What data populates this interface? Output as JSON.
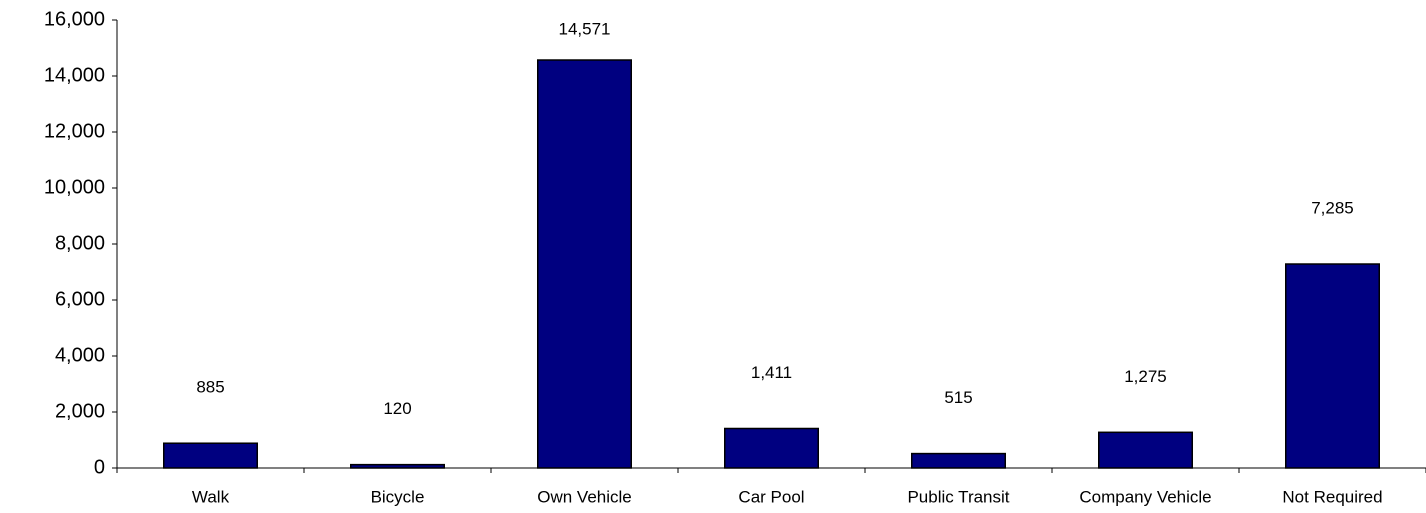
{
  "chart_data": {
    "type": "bar",
    "categories": [
      "Walk",
      "Bicycle",
      "Own Vehicle",
      "Car Pool",
      "Public Transit",
      "Company Vehicle",
      "Not Required"
    ],
    "values": [
      885,
      120,
      14571,
      1411,
      515,
      1275,
      7285
    ],
    "value_labels": [
      "885",
      "120",
      "14,571",
      "1,411",
      "515",
      "1,275",
      "7,285"
    ],
    "color": "#000080",
    "ylim": [
      0,
      16000
    ],
    "yticks": [
      0,
      {
        "value": 2000,
        "label": "2,000"
      },
      {
        "value": 4000,
        "label": "4,000"
      },
      {
        "value": 6000,
        "label": "6,000"
      },
      {
        "value": 8000,
        "label": "8,000"
      },
      {
        "value": 10000,
        "label": "10,000"
      },
      {
        "value": 12000,
        "label": "12,000"
      },
      {
        "value": 14000,
        "label": "14,000"
      },
      {
        "value": 16000,
        "label": "16,000"
      }
    ],
    "grid": false
  }
}
